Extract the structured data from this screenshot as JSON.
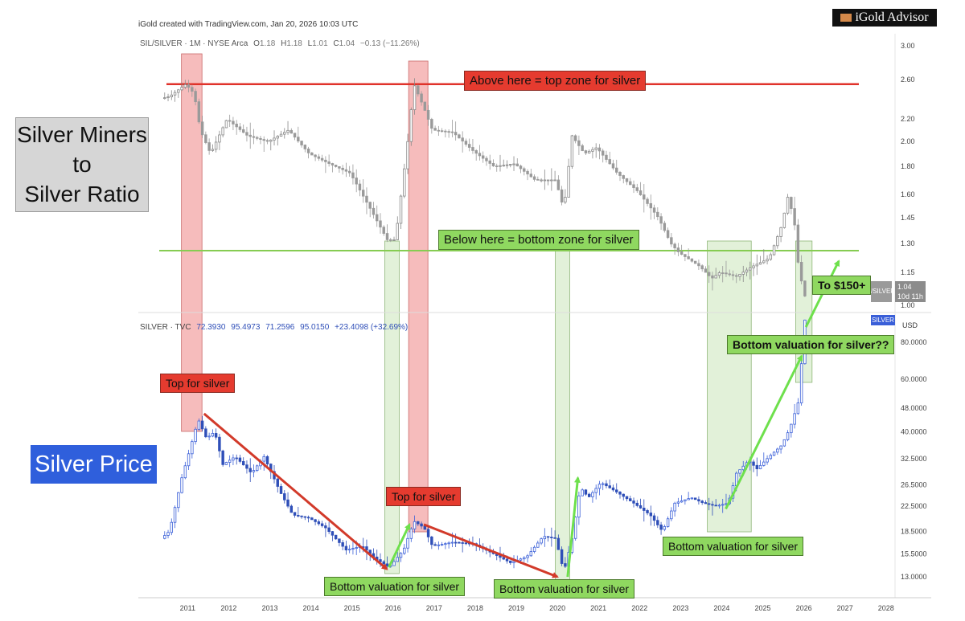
{
  "header": {
    "created": "iGold created with TradingView.com, Jan 20, 2026 10:03 UTC",
    "logo": "iGold Advisor",
    "upper_info": {
      "symbol": "SIL/SILVER · 1M · NYSE Arca",
      "o_label": "O",
      "o": "1.18",
      "h_label": "H",
      "h": "1.18",
      "l_label": "L",
      "l": "1.01",
      "c_label": "C",
      "c": "1.04",
      "chg": "−0.13 (−11.26%)"
    },
    "lower_info": {
      "symbol": "SILVER · TVC",
      "o": "72.3930",
      "h": "95.4973",
      "l": "71.2596",
      "c": "95.0150",
      "chg": "+23.4098 (+32.69%)"
    }
  },
  "side_titles": {
    "ratio": [
      "Silver Miners",
      "to",
      "Silver Ratio"
    ],
    "price": "Silver Price"
  },
  "annotations": {
    "top_zone": "Above here = top zone for silver",
    "bottom_zone": "Below here = bottom zone for silver",
    "top_silver_1": "Top for silver",
    "top_silver_2": "Top for silver",
    "bottom_val_1": "Bottom valuation for silver",
    "bottom_val_2": "Bottom valuation for silver",
    "bottom_val_3": "Bottom valuation for silver",
    "bottom_val_q": "Bottom valuation for silver??",
    "target": "To $150+"
  },
  "price_tags": {
    "ratio_symbol": "/SILVER",
    "ratio_value": "1.04",
    "ratio_countdown": "10d 11h",
    "silver_symbol": "SILVER",
    "currency": "USD"
  },
  "colors": {
    "ratio_candles": "#9a9a9a",
    "silver_up": "#3a5fd8",
    "silver_down": "#2f4fb8",
    "top_zone_line": "#e0322a",
    "bottom_zone_line": "#86cc52",
    "top_band": "#f3a5a5",
    "bottom_band": "#cfe8c0",
    "trend_down": "#d23a2a",
    "trend_up": "#6ee04c"
  },
  "chart_data": [
    {
      "type": "candlestick",
      "name": "SIL/SILVER",
      "scale": "log",
      "ylim": [
        1.0,
        3.1
      ],
      "yticks": [
        "3.00",
        "2.60",
        "2.20",
        "2.00",
        "1.80",
        "1.60",
        "1.45",
        "1.30",
        "1.15",
        "1.00"
      ],
      "reference_lines": [
        2.55,
        1.26
      ],
      "anchors": [
        [
          2010.4,
          2.4
        ],
        [
          2010.6,
          2.42
        ],
        [
          2011.0,
          2.55
        ],
        [
          2011.2,
          2.45
        ],
        [
          2011.35,
          2.1
        ],
        [
          2011.6,
          1.9
        ],
        [
          2012.0,
          2.2
        ],
        [
          2012.5,
          2.05
        ],
        [
          2013.0,
          2.0
        ],
        [
          2013.5,
          2.1
        ],
        [
          2014.0,
          1.9
        ],
        [
          2014.5,
          1.82
        ],
        [
          2015.0,
          1.75
        ],
        [
          2015.5,
          1.5
        ],
        [
          2015.9,
          1.32
        ],
        [
          2016.1,
          1.32
        ],
        [
          2016.4,
          2.0
        ],
        [
          2016.55,
          2.55
        ],
        [
          2016.8,
          2.3
        ],
        [
          2017.0,
          2.1
        ],
        [
          2017.5,
          2.08
        ],
        [
          2018.0,
          1.92
        ],
        [
          2018.5,
          1.8
        ],
        [
          2019.0,
          1.82
        ],
        [
          2019.5,
          1.7
        ],
        [
          2020.0,
          1.7
        ],
        [
          2020.2,
          1.5
        ],
        [
          2020.4,
          2.05
        ],
        [
          2020.7,
          1.9
        ],
        [
          2021.0,
          1.95
        ],
        [
          2021.5,
          1.75
        ],
        [
          2022.0,
          1.62
        ],
        [
          2022.5,
          1.45
        ],
        [
          2022.8,
          1.3
        ],
        [
          2023.0,
          1.25
        ],
        [
          2023.5,
          1.18
        ],
        [
          2023.8,
          1.12
        ],
        [
          2024.0,
          1.15
        ],
        [
          2024.4,
          1.13
        ],
        [
          2024.8,
          1.18
        ],
        [
          2025.2,
          1.22
        ],
        [
          2025.5,
          1.4
        ],
        [
          2025.65,
          1.58
        ],
        [
          2025.8,
          1.45
        ],
        [
          2025.9,
          1.2
        ],
        [
          2026.05,
          1.04
        ]
      ],
      "last": 1.04
    },
    {
      "type": "candlestick",
      "name": "SILVER",
      "scale": "log",
      "ylim": [
        12.0,
        100.0
      ],
      "yticks": [
        "80.0000",
        "60.0000",
        "48.0000",
        "40.0000",
        "32.5000",
        "26.5000",
        "22.5000",
        "18.5000",
        "15.5000",
        "13.0000"
      ],
      "anchors": [
        [
          2010.4,
          17.5
        ],
        [
          2010.6,
          18.5
        ],
        [
          2010.9,
          28.0
        ],
        [
          2011.1,
          35.0
        ],
        [
          2011.3,
          44.0
        ],
        [
          2011.5,
          38.0
        ],
        [
          2011.7,
          40.0
        ],
        [
          2011.9,
          31.0
        ],
        [
          2012.2,
          33.0
        ],
        [
          2012.6,
          29.0
        ],
        [
          2012.9,
          33.0
        ],
        [
          2013.3,
          25.0
        ],
        [
          2013.6,
          21.0
        ],
        [
          2014.0,
          20.5
        ],
        [
          2014.4,
          19.0
        ],
        [
          2014.9,
          16.0
        ],
        [
          2015.3,
          16.5
        ],
        [
          2015.6,
          15.0
        ],
        [
          2015.95,
          14.0
        ],
        [
          2016.3,
          16.0
        ],
        [
          2016.55,
          20.0
        ],
        [
          2016.8,
          19.0
        ],
        [
          2017.0,
          16.5
        ],
        [
          2017.5,
          17.0
        ],
        [
          2018.0,
          16.8
        ],
        [
          2018.5,
          15.5
        ],
        [
          2018.9,
          14.5
        ],
        [
          2019.3,
          15.2
        ],
        [
          2019.7,
          17.8
        ],
        [
          2020.0,
          17.5
        ],
        [
          2020.2,
          13.5
        ],
        [
          2020.4,
          17.5
        ],
        [
          2020.6,
          26.0
        ],
        [
          2020.8,
          24.0
        ],
        [
          2021.1,
          27.0
        ],
        [
          2021.5,
          25.0
        ],
        [
          2021.9,
          23.0
        ],
        [
          2022.3,
          21.0
        ],
        [
          2022.6,
          18.5
        ],
        [
          2022.9,
          23.0
        ],
        [
          2023.3,
          24.0
        ],
        [
          2023.6,
          23.0
        ],
        [
          2023.9,
          22.5
        ],
        [
          2024.2,
          23.0
        ],
        [
          2024.4,
          29.0
        ],
        [
          2024.7,
          32.0
        ],
        [
          2024.9,
          30.0
        ],
        [
          2025.2,
          33.0
        ],
        [
          2025.5,
          36.0
        ],
        [
          2025.7,
          41.0
        ],
        [
          2025.9,
          50.0
        ],
        [
          2026.0,
          72.0
        ],
        [
          2026.05,
          95.0
        ]
      ],
      "last": 95.015
    }
  ],
  "x_axis": {
    "range": [
      2009.8,
      2028.2
    ],
    "ticks": [
      "2011",
      "2012",
      "2013",
      "2014",
      "2015",
      "2016",
      "2017",
      "2018",
      "2019",
      "2020",
      "2021",
      "2022",
      "2023",
      "2024",
      "2025",
      "2026",
      "2027",
      "2028"
    ]
  },
  "highlights": {
    "top_periods": [
      [
        2010.85,
        2011.35
      ],
      [
        2016.38,
        2016.85
      ]
    ],
    "bottom_periods": [
      [
        2015.8,
        2016.15
      ],
      [
        2019.95,
        2020.3
      ],
      [
        2023.65,
        2024.72
      ],
      [
        2025.8,
        2026.2
      ]
    ]
  },
  "trend_lines": [
    {
      "kind": "down",
      "from": [
        2011.4,
        46.0
      ],
      "to": [
        2015.85,
        13.8
      ]
    },
    {
      "kind": "up",
      "from": [
        2015.9,
        14.0
      ],
      "to": [
        2016.4,
        19.5
      ]
    },
    {
      "kind": "down",
      "from": [
        2016.75,
        19.5
      ],
      "to": [
        2020.0,
        13.0
      ]
    },
    {
      "kind": "up",
      "from": [
        2020.25,
        13.0
      ],
      "to": [
        2020.5,
        28.0
      ]
    },
    {
      "kind": "up",
      "from": [
        2024.1,
        22.0
      ],
      "to": [
        2025.95,
        72.0
      ]
    },
    {
      "kind": "up",
      "from": [
        2026.05,
        90.0
      ],
      "to": [
        2026.85,
        150.0
      ]
    }
  ]
}
